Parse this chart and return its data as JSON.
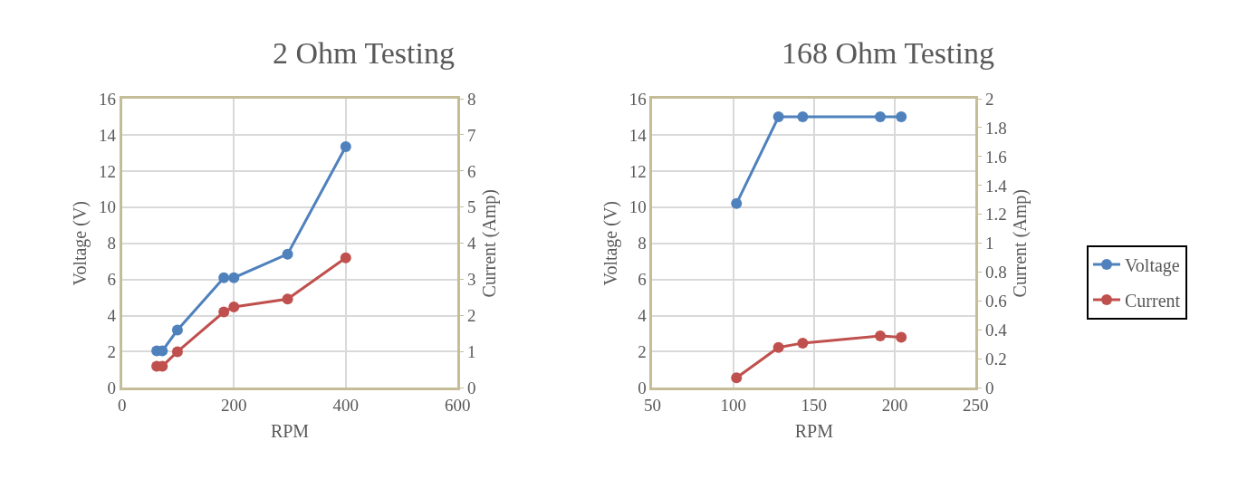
{
  "chart_data": [
    {
      "type": "line",
      "title": "2 Ohm Testing",
      "xlabel": "RPM",
      "ylabel": "Voltage (V)",
      "y2label": "Current (Amp)",
      "xlim": [
        0,
        600
      ],
      "xticks": [
        0,
        200,
        400,
        600
      ],
      "ylim": [
        0,
        16
      ],
      "yticks": [
        0,
        2,
        4,
        6,
        8,
        10,
        12,
        14,
        16
      ],
      "y2lim": [
        0,
        8
      ],
      "y2ticks": [
        0,
        1,
        2,
        3,
        4,
        5,
        6,
        7,
        8
      ],
      "grid": true,
      "legend": false,
      "marker": "circle",
      "series": [
        {
          "color": "#4f81bd",
          "x": [
            62,
            72,
            99,
            182,
            200,
            296,
            400
          ],
          "values": [
            2.05,
            2.05,
            3.2,
            6.1,
            6.1,
            7.4,
            13.35
          ]
        },
        {
          "color": "#c0504d",
          "axis": "y2",
          "x": [
            62,
            72,
            99,
            182,
            200,
            296,
            400
          ],
          "values": [
            0.6,
            0.6,
            1.0,
            2.1,
            2.24,
            2.46,
            3.6
          ]
        }
      ]
    },
    {
      "type": "line",
      "title": "168 Ohm Testing",
      "xlabel": "RPM",
      "ylabel": "Voltage (V)",
      "y2label": "Current (Amp)",
      "xlim": [
        50,
        250
      ],
      "xticks": [
        50,
        100,
        150,
        200,
        250
      ],
      "ylim": [
        0,
        16
      ],
      "yticks": [
        0,
        2,
        4,
        6,
        8,
        10,
        12,
        14,
        16
      ],
      "y2lim": [
        0,
        2
      ],
      "y2ticks": [
        0,
        0.2,
        0.4,
        0.6,
        0.8,
        1,
        1.2,
        1.4,
        1.6,
        1.8,
        2
      ],
      "grid": true,
      "legend": "right",
      "marker": "circle",
      "series": [
        {
          "name": "Voltage",
          "color": "#4f81bd",
          "x": [
            102,
            128,
            143,
            191,
            204
          ],
          "values": [
            10.2,
            15,
            15,
            15,
            15
          ]
        },
        {
          "name": "Current",
          "color": "#c0504d",
          "axis": "y2",
          "x": [
            102,
            128,
            143,
            191,
            204
          ],
          "values": [
            0.07,
            0.28,
            0.31,
            0.36,
            0.35
          ]
        }
      ]
    }
  ]
}
